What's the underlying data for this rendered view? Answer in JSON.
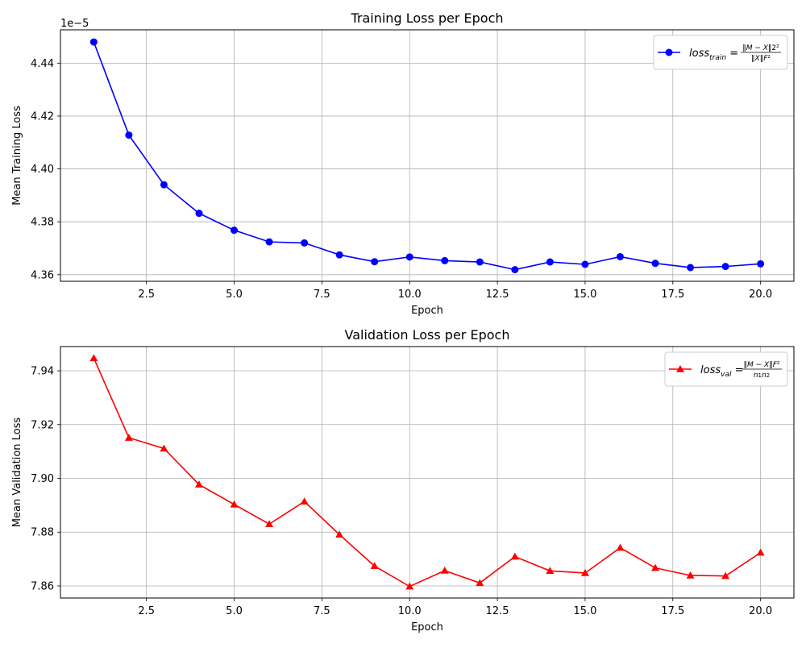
{
  "chart_data": [
    {
      "type": "line",
      "title": "Training Loss per Epoch",
      "xlabel": "Epoch",
      "ylabel": "Mean Training Loss",
      "offset_text": "1e−5",
      "xlim": [
        0.05,
        20.95
      ],
      "ylim": [
        4.3575,
        4.4526
      ],
      "xticks": [
        2.5,
        5.0,
        7.5,
        10.0,
        12.5,
        15.0,
        17.5,
        20.0
      ],
      "xtick_labels": [
        "2.5",
        "5.0",
        "7.5",
        "10.0",
        "12.5",
        "15.0",
        "17.5",
        "20.0"
      ],
      "yticks": [
        4.36,
        4.38,
        4.4,
        4.42,
        4.44
      ],
      "ytick_labels": [
        "4.36",
        "4.38",
        "4.40",
        "4.42",
        "4.44"
      ],
      "grid": true,
      "legend_position": "top-right",
      "color": "#0000ff",
      "marker": "circle",
      "series": [
        {
          "name": "loss_train = ‖M−X‖2² / ‖X‖F²",
          "x": [
            1,
            2,
            3,
            4,
            5,
            6,
            7,
            8,
            9,
            10,
            11,
            12,
            13,
            14,
            15,
            16,
            17,
            18,
            19,
            20
          ],
          "y": [
            4.448,
            4.4128,
            4.394,
            4.3832,
            4.3768,
            4.3724,
            4.372,
            4.3675,
            4.3649,
            4.3667,
            4.3653,
            4.3648,
            4.3619,
            4.3648,
            4.3639,
            4.3668,
            4.3643,
            4.3627,
            4.3631,
            4.3641
          ]
        }
      ]
    },
    {
      "type": "line",
      "title": "Validation Loss per Epoch",
      "xlabel": "Epoch",
      "ylabel": "Mean Validation Loss",
      "xlim": [
        0.05,
        20.95
      ],
      "ylim": [
        7.8555,
        7.949
      ],
      "xticks": [
        2.5,
        5.0,
        7.5,
        10.0,
        12.5,
        15.0,
        17.5,
        20.0
      ],
      "xtick_labels": [
        "2.5",
        "5.0",
        "7.5",
        "10.0",
        "12.5",
        "15.0",
        "17.5",
        "20.0"
      ],
      "yticks": [
        7.86,
        7.88,
        7.9,
        7.92,
        7.94
      ],
      "ytick_labels": [
        "7.86",
        "7.88",
        "7.90",
        "7.92",
        "7.94"
      ],
      "grid": true,
      "legend_position": "top-right",
      "color": "#ff0000",
      "marker": "triangle",
      "series": [
        {
          "name": "loss_val = ‖M−X‖F² / n1n2",
          "x": [
            1,
            2,
            3,
            4,
            5,
            6,
            7,
            8,
            9,
            10,
            11,
            12,
            13,
            14,
            15,
            16,
            17,
            18,
            19,
            20
          ],
          "y": [
            7.9447,
            7.9151,
            7.9111,
            7.8977,
            7.8903,
            7.883,
            7.8914,
            7.8791,
            7.8674,
            7.8598,
            7.8657,
            7.8611,
            7.8709,
            7.8656,
            7.8648,
            7.8742,
            7.8667,
            7.8639,
            7.8637,
            7.8724
          ]
        }
      ]
    }
  ]
}
